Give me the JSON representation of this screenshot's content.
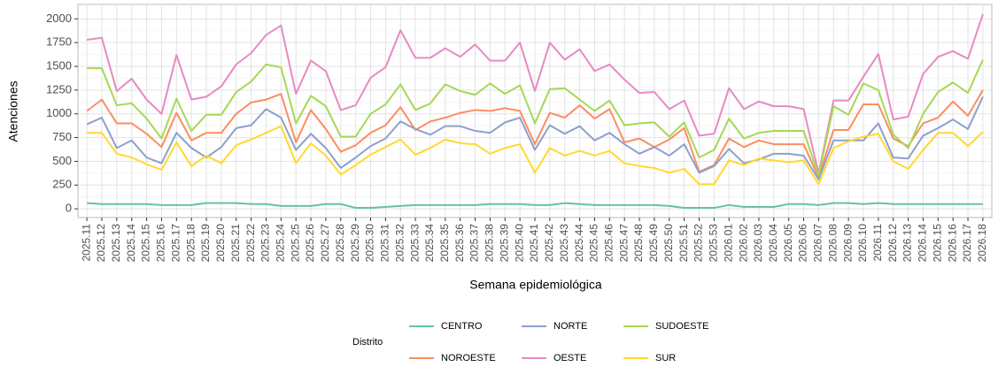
{
  "chart_data": {
    "type": "line",
    "x_label": "Semana epidemiológica",
    "y_label": "Atenciones",
    "legend_title": "Distrito",
    "categories": [
      "2025.11",
      "2025.12",
      "2025.13",
      "2025.14",
      "2025.15",
      "2025.16",
      "2025.17",
      "2025.18",
      "2025.19",
      "2025.20",
      "2025.21",
      "2025.22",
      "2025.23",
      "2025.24",
      "2025.25",
      "2025.26",
      "2025.27",
      "2025.28",
      "2025.29",
      "2025.30",
      "2025.31",
      "2025.32",
      "2025.33",
      "2025.34",
      "2025.35",
      "2025.36",
      "2025.37",
      "2025.38",
      "2025.39",
      "2025.40",
      "2025.41",
      "2025.42",
      "2025.43",
      "2025.44",
      "2025.45",
      "2025.46",
      "2025.47",
      "2025.48",
      "2025.49",
      "2025.50",
      "2025.51",
      "2025.52",
      "2025.53",
      "2026.01",
      "2026.02",
      "2026.03",
      "2026.04",
      "2026.05",
      "2026.06",
      "2026.07",
      "2026.08",
      "2026.09",
      "2026.10",
      "2026.11",
      "2026.12",
      "2026.13",
      "2026.14",
      "2026.15",
      "2026.16",
      "2026.17",
      "2026.18"
    ],
    "series": [
      {
        "name": "CENTRO",
        "color": "#66c2a5",
        "values": [
          60,
          50,
          50,
          50,
          50,
          40,
          40,
          40,
          60,
          60,
          60,
          50,
          50,
          30,
          30,
          30,
          50,
          50,
          10,
          10,
          20,
          30,
          40,
          40,
          40,
          40,
          40,
          50,
          50,
          50,
          40,
          40,
          60,
          50,
          40,
          40,
          40,
          40,
          40,
          30,
          10,
          10,
          10,
          40,
          20,
          20,
          20,
          50,
          50,
          40,
          60,
          60,
          50,
          60,
          50,
          50,
          50,
          50,
          50,
          50,
          50
        ]
      },
      {
        "name": "NOROESTE",
        "color": "#fc8d62",
        "values": [
          1030,
          1150,
          900,
          900,
          790,
          650,
          1010,
          720,
          800,
          800,
          1000,
          1120,
          1150,
          1210,
          700,
          1040,
          840,
          600,
          670,
          800,
          880,
          1070,
          830,
          920,
          960,
          1010,
          1040,
          1030,
          1060,
          1030,
          680,
          1010,
          960,
          1090,
          950,
          1050,
          700,
          740,
          650,
          730,
          850,
          390,
          460,
          740,
          650,
          720,
          680,
          680,
          680,
          330,
          830,
          830,
          1100,
          1100,
          740,
          660,
          900,
          960,
          1130,
          980,
          1250
        ]
      },
      {
        "name": "NORTE",
        "color": "#8da0cb",
        "values": [
          890,
          960,
          640,
          720,
          540,
          480,
          800,
          640,
          540,
          650,
          850,
          880,
          1050,
          960,
          620,
          790,
          640,
          430,
          540,
          660,
          740,
          920,
          840,
          780,
          870,
          870,
          820,
          800,
          910,
          960,
          620,
          880,
          790,
          870,
          720,
          800,
          680,
          580,
          650,
          560,
          680,
          380,
          450,
          630,
          480,
          520,
          580,
          580,
          560,
          310,
          720,
          720,
          720,
          900,
          540,
          530,
          770,
          850,
          940,
          840,
          1180
        ]
      },
      {
        "name": "OESTE",
        "color": "#e78ac3",
        "values": [
          1780,
          1800,
          1240,
          1370,
          1150,
          1000,
          1620,
          1150,
          1180,
          1290,
          1520,
          1640,
          1830,
          1930,
          1210,
          1560,
          1450,
          1040,
          1090,
          1380,
          1490,
          1880,
          1590,
          1590,
          1690,
          1600,
          1730,
          1560,
          1560,
          1750,
          1240,
          1750,
          1570,
          1680,
          1450,
          1520,
          1360,
          1220,
          1230,
          1050,
          1140,
          770,
          790,
          1270,
          1050,
          1130,
          1080,
          1080,
          1050,
          370,
          1140,
          1140,
          1390,
          1630,
          940,
          970,
          1420,
          1600,
          1660,
          1580,
          2050
        ]
      },
      {
        "name": "SUDOESTE",
        "color": "#a6d854",
        "values": [
          1480,
          1480,
          1090,
          1110,
          950,
          740,
          1160,
          820,
          990,
          990,
          1230,
          1340,
          1520,
          1490,
          900,
          1190,
          1080,
          760,
          760,
          1000,
          1100,
          1310,
          1040,
          1110,
          1310,
          1240,
          1200,
          1320,
          1210,
          1300,
          900,
          1260,
          1270,
          1150,
          1030,
          1140,
          880,
          900,
          910,
          760,
          910,
          540,
          620,
          950,
          740,
          800,
          820,
          820,
          820,
          350,
          1080,
          990,
          1320,
          1250,
          780,
          640,
          1000,
          1230,
          1330,
          1220,
          1570
        ]
      },
      {
        "name": "SUR",
        "color": "#ffd92f",
        "values": [
          800,
          800,
          580,
          540,
          470,
          410,
          700,
          450,
          560,
          480,
          670,
          730,
          800,
          870,
          480,
          690,
          560,
          360,
          460,
          570,
          650,
          730,
          570,
          640,
          730,
          690,
          680,
          580,
          640,
          680,
          380,
          640,
          560,
          610,
          560,
          610,
          480,
          450,
          430,
          380,
          420,
          260,
          260,
          510,
          460,
          530,
          510,
          490,
          510,
          260,
          640,
          710,
          760,
          790,
          500,
          420,
          620,
          800,
          800,
          660,
          810
        ]
      }
    ],
    "ylim": [
      -92,
      2152
    ],
    "yticks": [
      0,
      250,
      500,
      750,
      1000,
      1250,
      1500,
      1750,
      2000
    ],
    "grid": true
  }
}
